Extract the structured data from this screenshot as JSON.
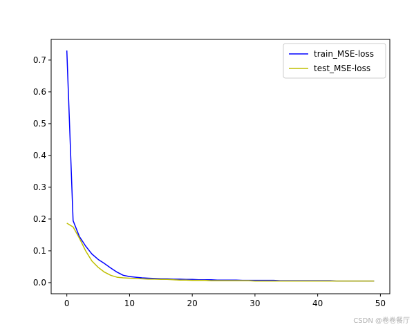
{
  "chart_data": {
    "type": "line",
    "title": "",
    "xlabel": "",
    "ylabel": "",
    "xlim": [
      -2.5,
      51.5
    ],
    "ylim": [
      -0.035,
      0.765
    ],
    "x_ticks": [
      0,
      10,
      20,
      30,
      40,
      50
    ],
    "y_ticks": [
      0.0,
      0.1,
      0.2,
      0.3,
      0.4,
      0.5,
      0.6,
      0.7
    ],
    "x_tick_labels": [
      "0",
      "10",
      "20",
      "30",
      "40",
      "50"
    ],
    "y_tick_labels": [
      "0.0",
      "0.1",
      "0.2",
      "0.3",
      "0.4",
      "0.5",
      "0.6",
      "0.7"
    ],
    "grid": false,
    "legend_placement": "upper right",
    "x": [
      0,
      1,
      2,
      3,
      4,
      5,
      6,
      7,
      8,
      9,
      10,
      11,
      12,
      13,
      14,
      15,
      16,
      17,
      18,
      19,
      20,
      21,
      22,
      23,
      24,
      25,
      26,
      27,
      28,
      29,
      30,
      31,
      32,
      33,
      34,
      35,
      36,
      37,
      38,
      39,
      40,
      41,
      42,
      43,
      44,
      45,
      46,
      47,
      48,
      49
    ],
    "series": [
      {
        "name": "train_MSE-loss",
        "color": "#0000ff",
        "values": [
          0.73,
          0.195,
          0.145,
          0.115,
          0.09,
          0.073,
          0.06,
          0.046,
          0.033,
          0.023,
          0.019,
          0.017,
          0.015,
          0.014,
          0.013,
          0.012,
          0.012,
          0.011,
          0.011,
          0.01,
          0.01,
          0.009,
          0.009,
          0.009,
          0.008,
          0.008,
          0.008,
          0.008,
          0.007,
          0.007,
          0.007,
          0.007,
          0.007,
          0.007,
          0.006,
          0.006,
          0.006,
          0.006,
          0.006,
          0.006,
          0.006,
          0.006,
          0.006,
          0.005,
          0.005,
          0.005,
          0.005,
          0.005,
          0.005,
          0.005
        ]
      },
      {
        "name": "test_MSE-loss",
        "color": "#bfbf00",
        "values": [
          0.187,
          0.175,
          0.14,
          0.1,
          0.068,
          0.048,
          0.033,
          0.023,
          0.017,
          0.015,
          0.014,
          0.013,
          0.012,
          0.011,
          0.011,
          0.01,
          0.01,
          0.009,
          0.008,
          0.008,
          0.007,
          0.007,
          0.007,
          0.006,
          0.006,
          0.006,
          0.006,
          0.006,
          0.006,
          0.006,
          0.005,
          0.005,
          0.005,
          0.005,
          0.005,
          0.005,
          0.005,
          0.005,
          0.005,
          0.005,
          0.005,
          0.005,
          0.005,
          0.005,
          0.005,
          0.005,
          0.005,
          0.005,
          0.005,
          0.005
        ]
      }
    ]
  },
  "watermark": "CSDN @卷卷餐厅"
}
